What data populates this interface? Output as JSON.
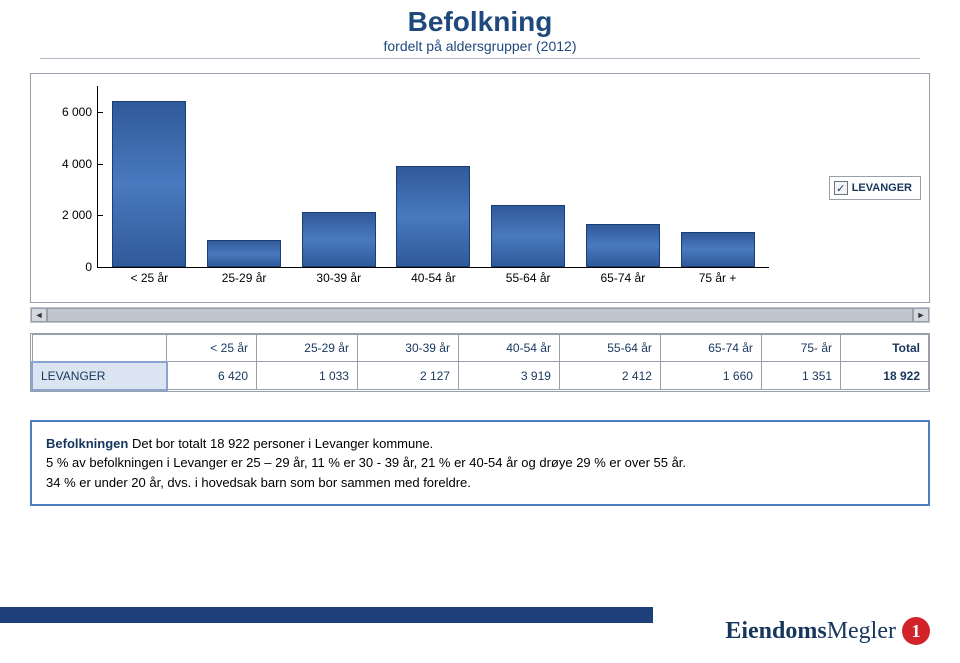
{
  "title": {
    "main": "Befolkning",
    "sub": "fordelt på aldersgrupper (2012)"
  },
  "chart": {
    "type": "bar",
    "y_max": 7000,
    "y_ticks": [
      0,
      2000,
      4000,
      6000
    ],
    "y_tick_labels": [
      "0",
      "2 000",
      "4 000",
      "6 000"
    ],
    "categories": [
      "< 25 år",
      "25-29 år",
      "30-39 år",
      "40-54 år",
      "55-64 år",
      "65-74 år",
      "75 år +"
    ],
    "values": [
      6420,
      1033,
      2127,
      3919,
      2412,
      1660,
      1351
    ],
    "bar_color_top": "#4a79bf",
    "bar_color_bottom": "#2f5a9a",
    "bar_border": "#1b3e74",
    "axis_color": "#000000",
    "label_fontsize": 12,
    "legend": {
      "checked": true,
      "label": "LEVANGER"
    }
  },
  "table": {
    "headers": [
      "",
      "< 25 år",
      "25-29 år",
      "30-39 år",
      "40-54 år",
      "55-64 år",
      "65-74 år",
      "75- år",
      "Total"
    ],
    "row_label": "LEVANGER",
    "cells": [
      "6 420",
      "1 033",
      "2 127",
      "3 919",
      "2 412",
      "1 660",
      "1 351",
      "18 922"
    ],
    "total_col_index": 8
  },
  "info": {
    "lead": "Befolkningen",
    "line1_rest": " Det bor totalt 18 922 personer i Levanger kommune.",
    "line2": "5 % av befolkningen i Levanger er 25 – 29 år, 11 % er 30 - 39 år, 21 % er 40-54 år og drøye 29 % er over 55 år.",
    "line3": "34 % er under 20 år, dvs. i hovedsak barn som bor sammen med foreldre."
  },
  "brand": {
    "part1": "Eiendoms",
    "part2": "Megler",
    "badge": "1"
  },
  "colors": {
    "title": "#1f497d",
    "panel_border": "#9aa0ab",
    "infobox_border": "#4e7fbc",
    "stripe": "#1f3f7a",
    "badge_bg": "#d2232a"
  }
}
